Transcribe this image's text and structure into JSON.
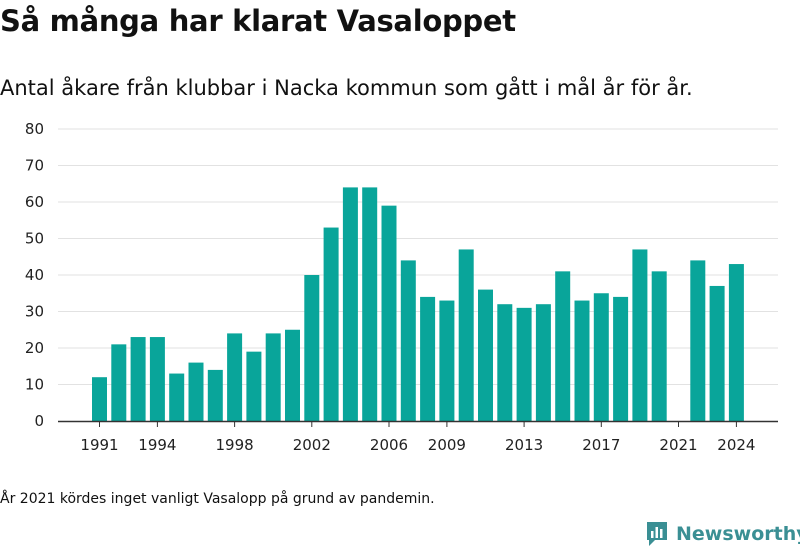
{
  "title": "Så många har klarat Vasaloppet",
  "subtitle": "Antal åkare från klubbar i Nacka kommun som gått i mål år för år.",
  "note": "År 2021 kördes inget vanligt Vasalopp på grund av pandemin.",
  "brand": {
    "name": "Newsworthy",
    "icon": "newsworthy-logo-icon",
    "color": "#3a8f94"
  },
  "colors": {
    "bar": "#09a59a",
    "grid": "#e2e2e2",
    "axis": "#333333",
    "text": "#222222"
  },
  "chart_data": {
    "type": "bar",
    "title": "Så många har klarat Vasaloppet",
    "subtitle": "Antal åkare från klubbar i Nacka kommun som gått i mål år för år.",
    "xlabel": "",
    "ylabel": "",
    "ylim": [
      0,
      80
    ],
    "yticks": [
      0,
      10,
      20,
      30,
      40,
      50,
      60,
      70,
      80
    ],
    "xticks": [
      1991,
      1994,
      1998,
      2002,
      2006,
      2009,
      2013,
      2017,
      2021,
      2024
    ],
    "grid": true,
    "categories": [
      1991,
      1992,
      1993,
      1994,
      1995,
      1996,
      1997,
      1998,
      1999,
      2000,
      2001,
      2002,
      2003,
      2004,
      2005,
      2006,
      2007,
      2008,
      2009,
      2010,
      2011,
      2012,
      2013,
      2014,
      2015,
      2016,
      2017,
      2018,
      2019,
      2020,
      2021,
      2022,
      2023,
      2024
    ],
    "values": [
      12,
      21,
      23,
      23,
      13,
      16,
      14,
      24,
      19,
      24,
      25,
      40,
      53,
      64,
      64,
      59,
      44,
      34,
      33,
      47,
      36,
      32,
      31,
      32,
      41,
      33,
      35,
      34,
      47,
      41,
      null,
      44,
      37,
      43
    ]
  }
}
